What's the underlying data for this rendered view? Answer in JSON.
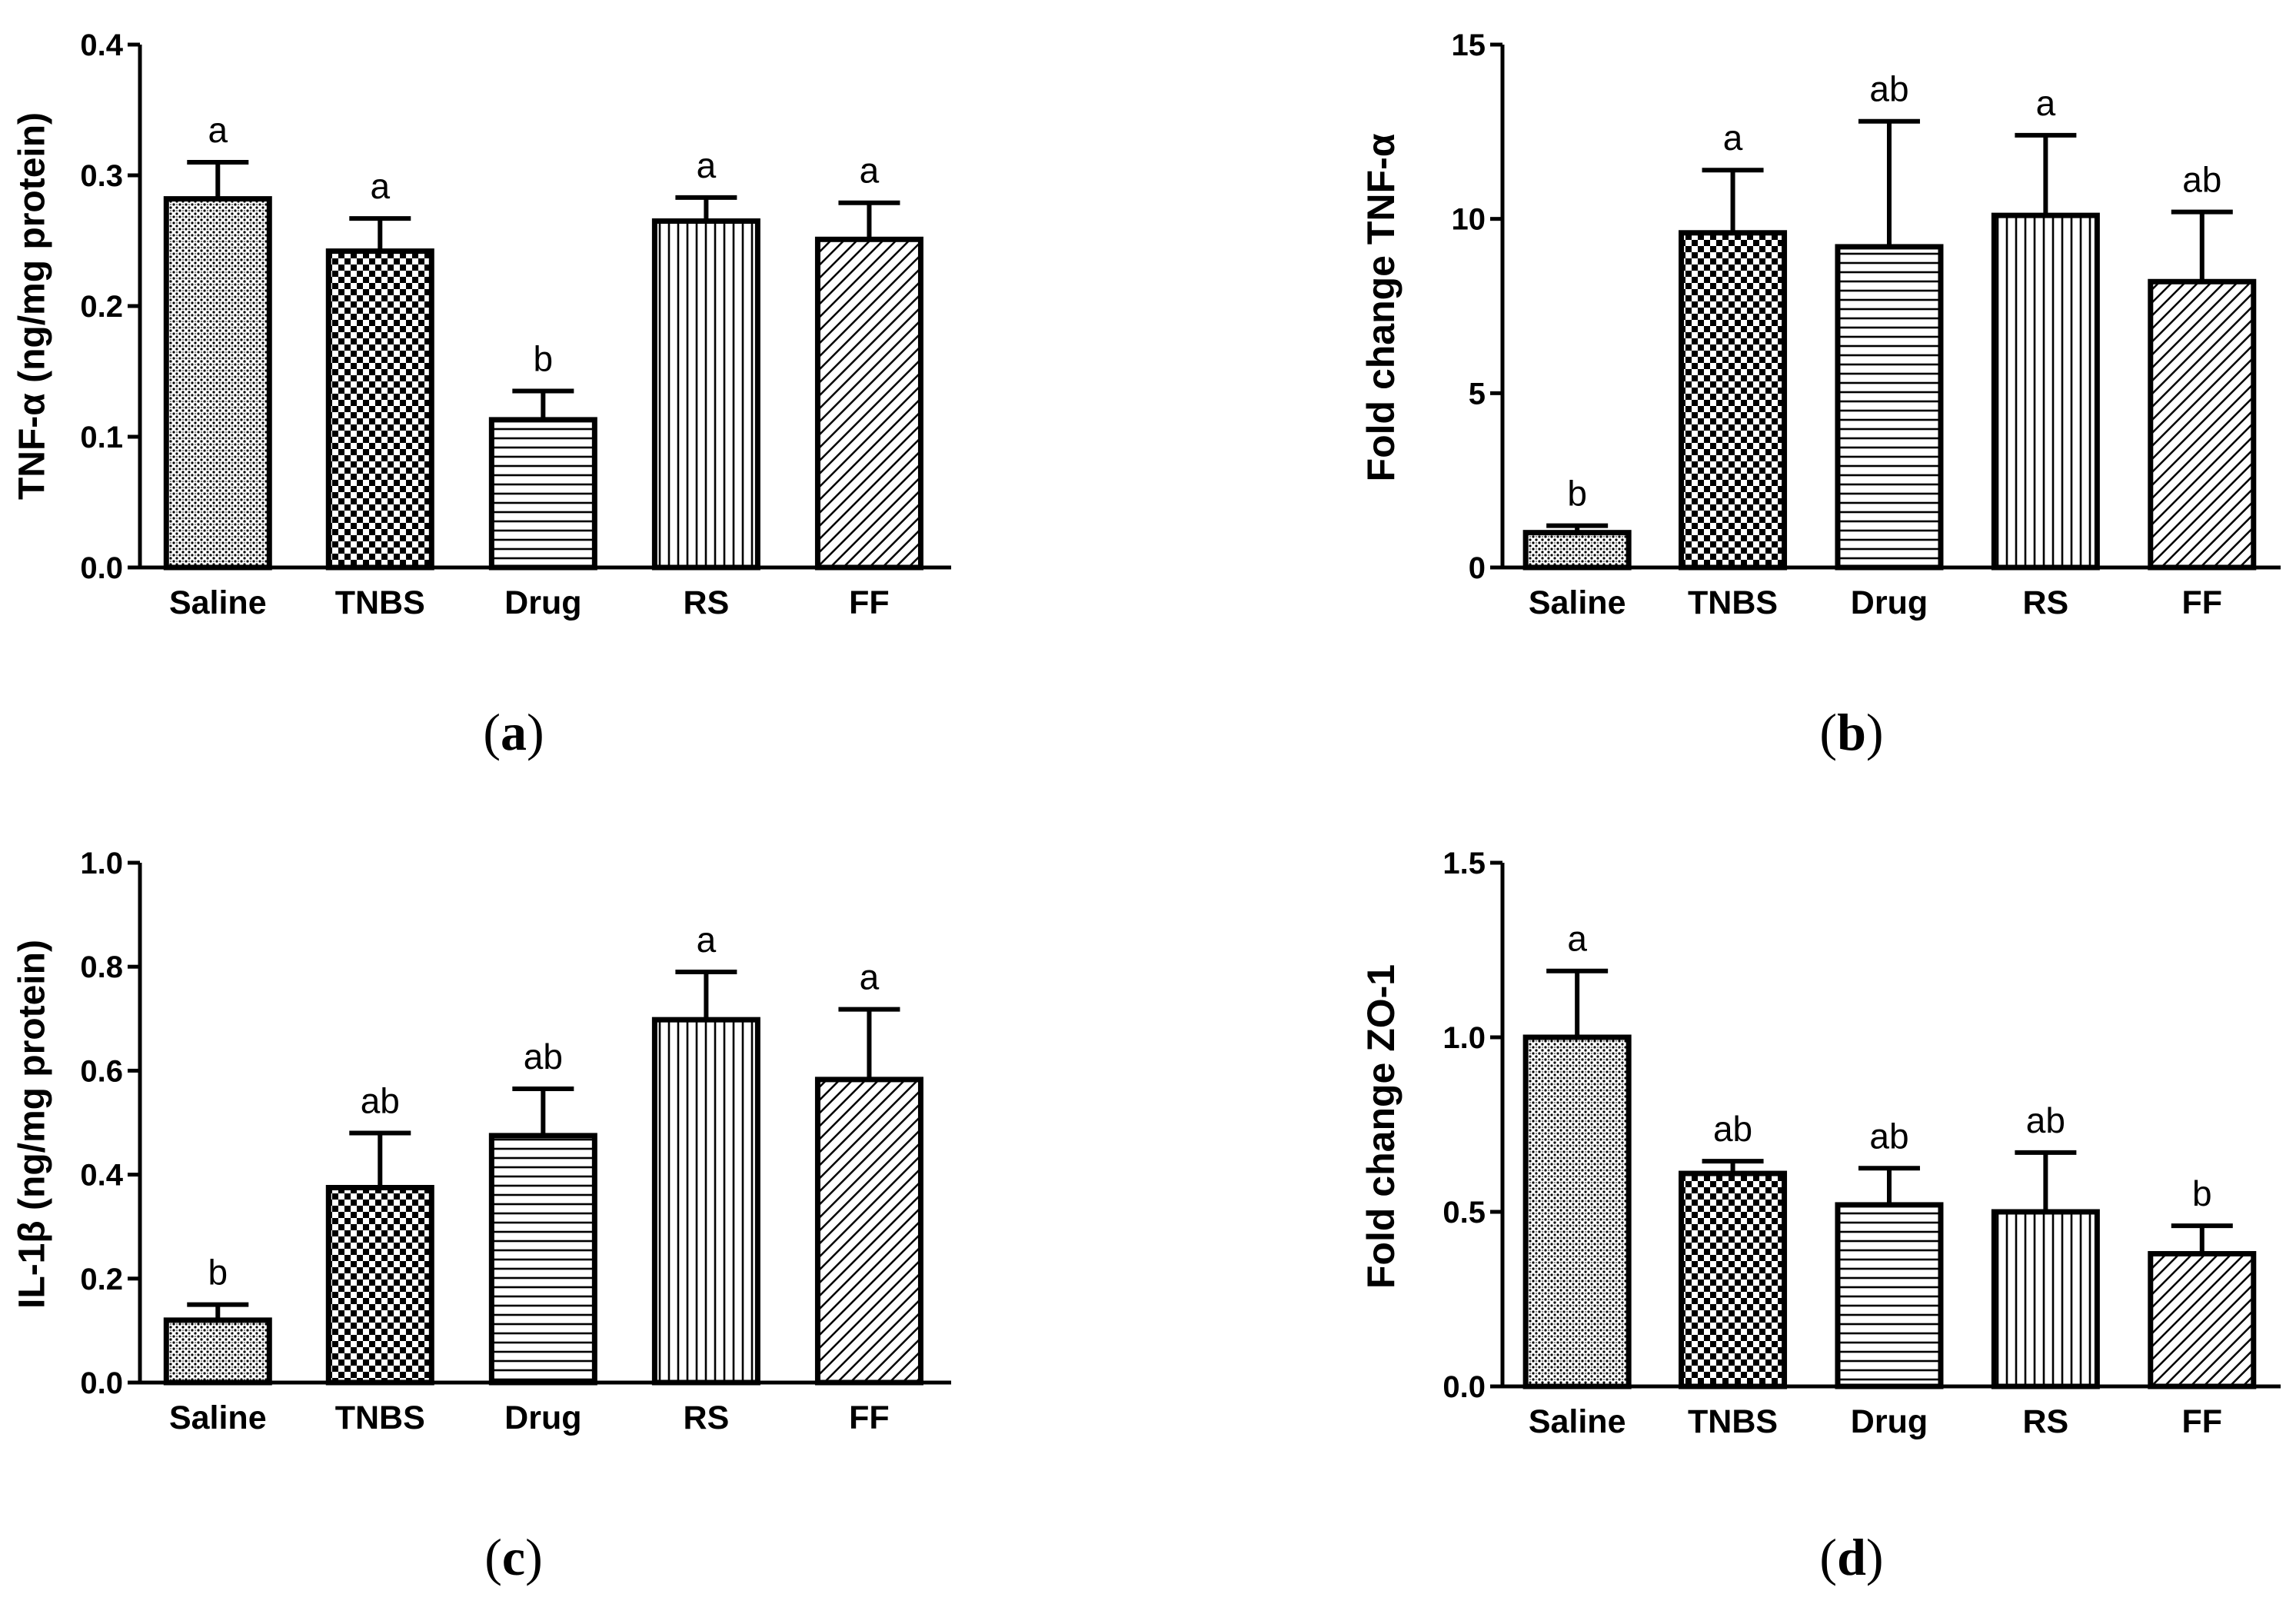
{
  "chart_data": [
    {
      "panel": "a",
      "type": "bar",
      "categories": [
        "Saline",
        "TNBS",
        "Drug",
        "RS",
        "FF"
      ],
      "values": [
        0.282,
        0.242,
        0.113,
        0.265,
        0.251
      ],
      "errors": [
        0.028,
        0.025,
        0.022,
        0.018,
        0.028
      ],
      "significance": [
        "a",
        "a",
        "b",
        "a",
        "a"
      ],
      "ylabel": "TNF-α (ng/mg protein)",
      "ylim": [
        0,
        0.4
      ],
      "yticks": [
        "0.0",
        "0.1",
        "0.2",
        "0.3",
        "0.4"
      ],
      "grid": false
    },
    {
      "panel": "b",
      "type": "bar",
      "categories": [
        "Saline",
        "TNBS",
        "Drug",
        "RS",
        "FF"
      ],
      "values": [
        1.0,
        9.6,
        9.2,
        10.1,
        8.2
      ],
      "errors": [
        0.2,
        1.8,
        3.6,
        2.3,
        2.0
      ],
      "significance": [
        "b",
        "a",
        "ab",
        "a",
        "ab"
      ],
      "ylabel": "Fold change TNF-α",
      "ylim": [
        0,
        15
      ],
      "yticks": [
        "0",
        "5",
        "10",
        "15"
      ],
      "grid": false
    },
    {
      "panel": "c",
      "type": "bar",
      "categories": [
        "Saline",
        "TNBS",
        "Drug",
        "RS",
        "FF"
      ],
      "values": [
        0.12,
        0.375,
        0.475,
        0.698,
        0.583
      ],
      "errors": [
        0.03,
        0.105,
        0.09,
        0.092,
        0.135
      ],
      "significance": [
        "b",
        "ab",
        "ab",
        "a",
        "a"
      ],
      "ylabel": "IL-1β (ng/mg protein)",
      "ylim": [
        0,
        1.0
      ],
      "yticks": [
        "0.0",
        "0.2",
        "0.4",
        "0.6",
        "0.8",
        "1.0"
      ],
      "grid": false
    },
    {
      "panel": "d",
      "type": "bar",
      "categories": [
        "Saline",
        "TNBS",
        "Drug",
        "RS",
        "FF"
      ],
      "values": [
        1.0,
        0.61,
        0.52,
        0.5,
        0.38
      ],
      "errors": [
        0.19,
        0.035,
        0.105,
        0.17,
        0.08
      ],
      "significance": [
        "a",
        "ab",
        "ab",
        "ab",
        "b"
      ],
      "ylabel": "Fold change ZO-1",
      "ylim": [
        0,
        1.5
      ],
      "yticks": [
        "0.0",
        "0.5",
        "1.0",
        "1.5"
      ],
      "grid": false
    }
  ],
  "panel_labels": [
    "(a)",
    "(b)",
    "(c)",
    "(d)"
  ],
  "bar_patterns": [
    "dots",
    "checker",
    "hlines",
    "vlines",
    "diagonal"
  ]
}
